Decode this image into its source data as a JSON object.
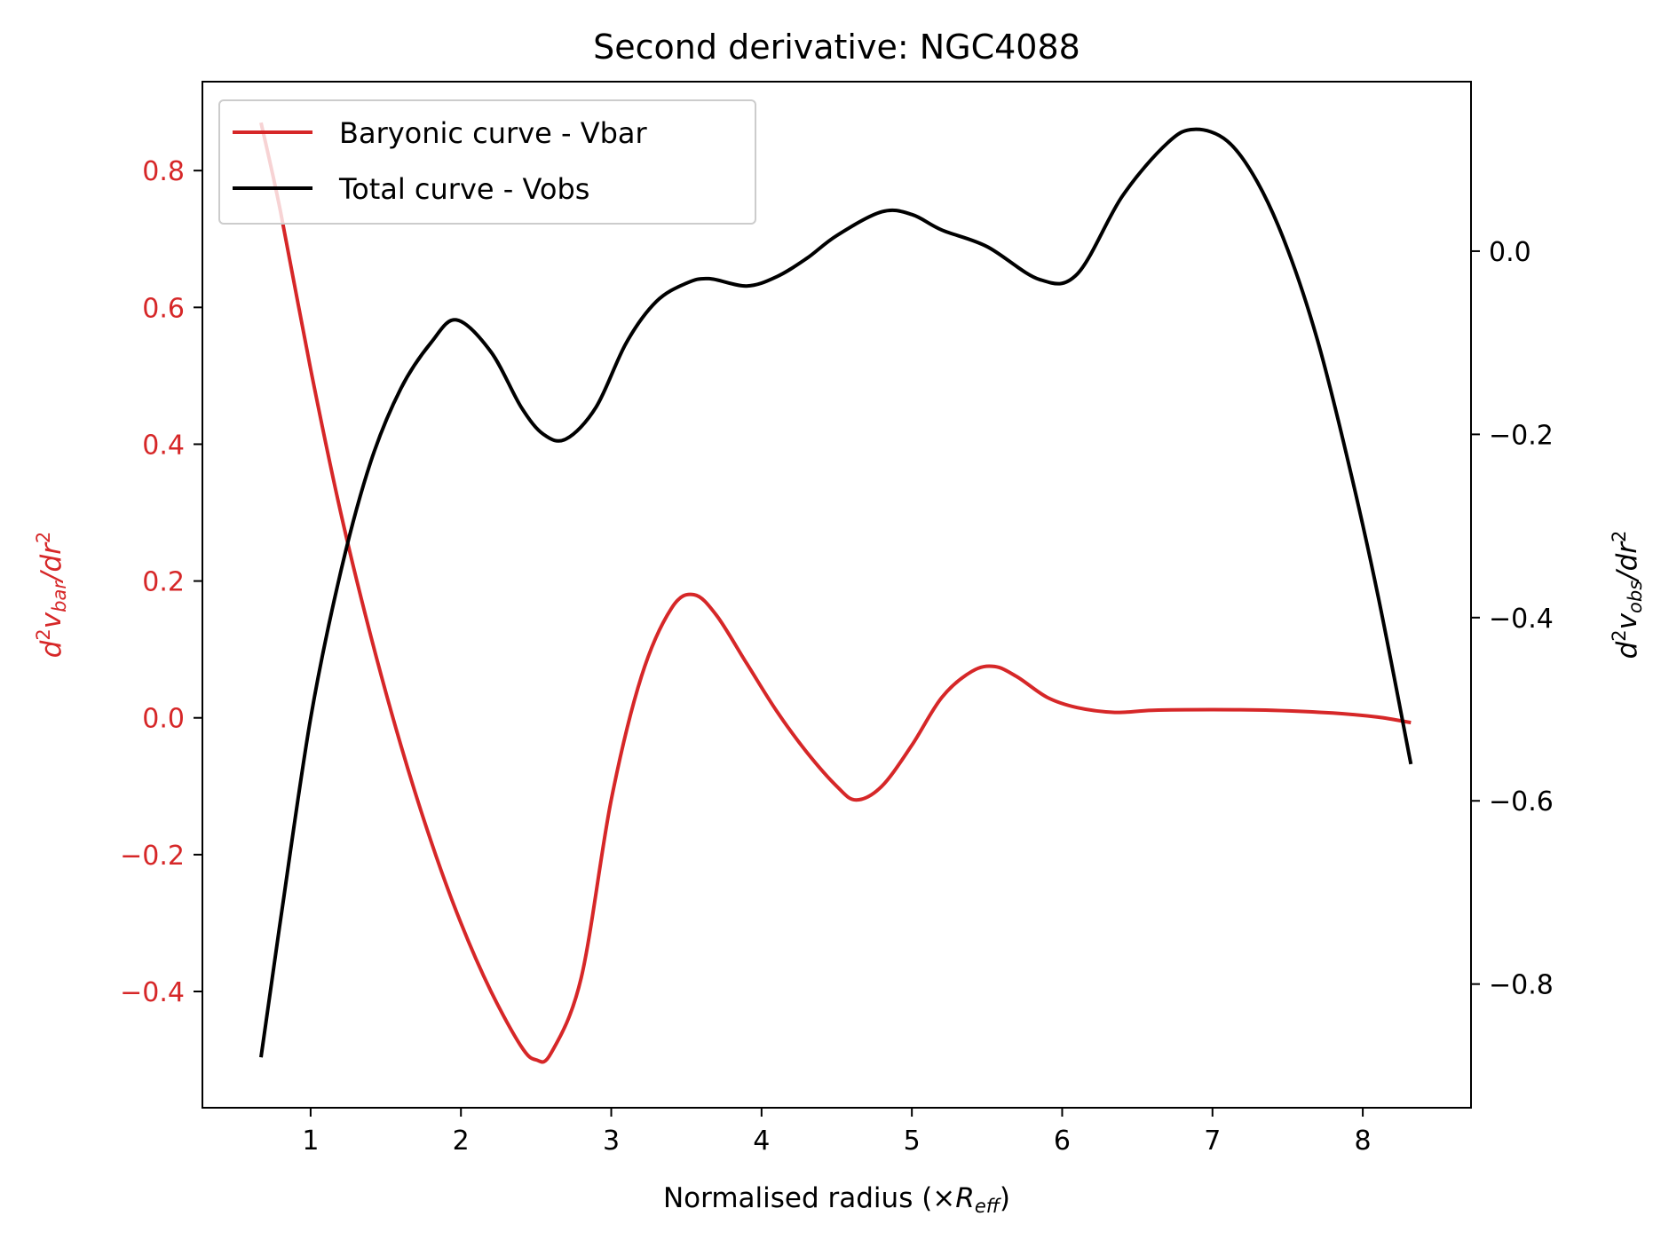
{
  "chart_data": {
    "type": "line",
    "title": "Second derivative: NGC4088",
    "xlabel": "Normalised radius (×R_eff)",
    "xlabel_parts": {
      "main": "Normalised radius (×",
      "R": "R",
      "sub": "eff",
      "close": ")"
    },
    "ylabel_left_parts": {
      "pre": "d",
      "sup1": "2",
      "v": "v",
      "sub": "bar",
      "mid": "/dr",
      "sup2": "2"
    },
    "ylabel_right_parts": {
      "pre": "d",
      "sup1": "2",
      "v": "v",
      "sub": "obs",
      "mid": "/dr",
      "sup2": "2"
    },
    "xlim": [
      0.28,
      8.72
    ],
    "ylim_left": [
      -0.57,
      0.93
    ],
    "ylim_right": [
      -0.935,
      0.185
    ],
    "x_ticks": [
      1,
      2,
      3,
      4,
      5,
      6,
      7,
      8
    ],
    "x_tick_labels": [
      "1",
      "2",
      "3",
      "4",
      "5",
      "6",
      "7",
      "8"
    ],
    "left_ticks": [
      -0.4,
      -0.2,
      0.0,
      0.2,
      0.4,
      0.6,
      0.8
    ],
    "left_tick_labels": [
      "−0.4",
      "−0.2",
      "0.0",
      "0.2",
      "0.4",
      "0.6",
      "0.8"
    ],
    "right_ticks": [
      -0.8,
      -0.6,
      -0.4,
      -0.2,
      0.0
    ],
    "right_tick_labels": [
      "−0.8",
      "−0.6",
      "−0.4",
      "−0.2",
      "0.0"
    ],
    "grid": false,
    "legend_position": "upper-left",
    "colors": {
      "vbar": "#d62728",
      "vobs": "#000000",
      "left_axis_text": "#d62728",
      "right_axis_text": "#000000"
    },
    "series": [
      {
        "name": "Baryonic curve - Vbar",
        "axis": "left",
        "x": [
          0.67,
          0.8,
          1.0,
          1.2,
          1.4,
          1.6,
          1.8,
          2.0,
          2.2,
          2.4,
          2.5,
          2.6,
          2.8,
          3.0,
          3.2,
          3.4,
          3.55,
          3.7,
          3.9,
          4.1,
          4.3,
          4.5,
          4.63,
          4.8,
          5.0,
          5.2,
          5.4,
          5.55,
          5.7,
          5.9,
          6.1,
          6.35,
          6.6,
          7.0,
          7.4,
          7.8,
          8.1,
          8.32
        ],
        "y": [
          0.87,
          0.74,
          0.51,
          0.3,
          0.12,
          -0.04,
          -0.18,
          -0.3,
          -0.4,
          -0.48,
          -0.5,
          -0.49,
          -0.38,
          -0.12,
          0.06,
          0.16,
          0.18,
          0.15,
          0.08,
          0.01,
          -0.05,
          -0.1,
          -0.12,
          -0.1,
          -0.04,
          0.03,
          0.068,
          0.075,
          0.06,
          0.03,
          0.015,
          0.008,
          0.011,
          0.012,
          0.011,
          0.007,
          0.001,
          -0.007
        ]
      },
      {
        "name": "Total curve - Vobs",
        "axis": "right",
        "x": [
          0.67,
          0.8,
          1.0,
          1.2,
          1.4,
          1.6,
          1.8,
          1.97,
          2.2,
          2.4,
          2.55,
          2.7,
          2.9,
          3.1,
          3.3,
          3.5,
          3.65,
          3.9,
          4.1,
          4.3,
          4.5,
          4.8,
          5.0,
          5.2,
          5.5,
          5.85,
          6.1,
          6.4,
          6.7,
          6.88,
          7.1,
          7.3,
          7.5,
          7.7,
          7.9,
          8.1,
          8.32
        ],
        "y": [
          -0.88,
          -0.73,
          -0.51,
          -0.35,
          -0.23,
          -0.15,
          -0.1,
          -0.075,
          -0.11,
          -0.17,
          -0.2,
          -0.205,
          -0.17,
          -0.1,
          -0.055,
          -0.035,
          -0.03,
          -0.038,
          -0.028,
          -0.008,
          0.017,
          0.043,
          0.04,
          0.023,
          0.005,
          -0.031,
          -0.025,
          0.06,
          0.118,
          0.133,
          0.12,
          0.075,
          0.002,
          -0.098,
          -0.228,
          -0.375,
          -0.56
        ]
      }
    ]
  }
}
